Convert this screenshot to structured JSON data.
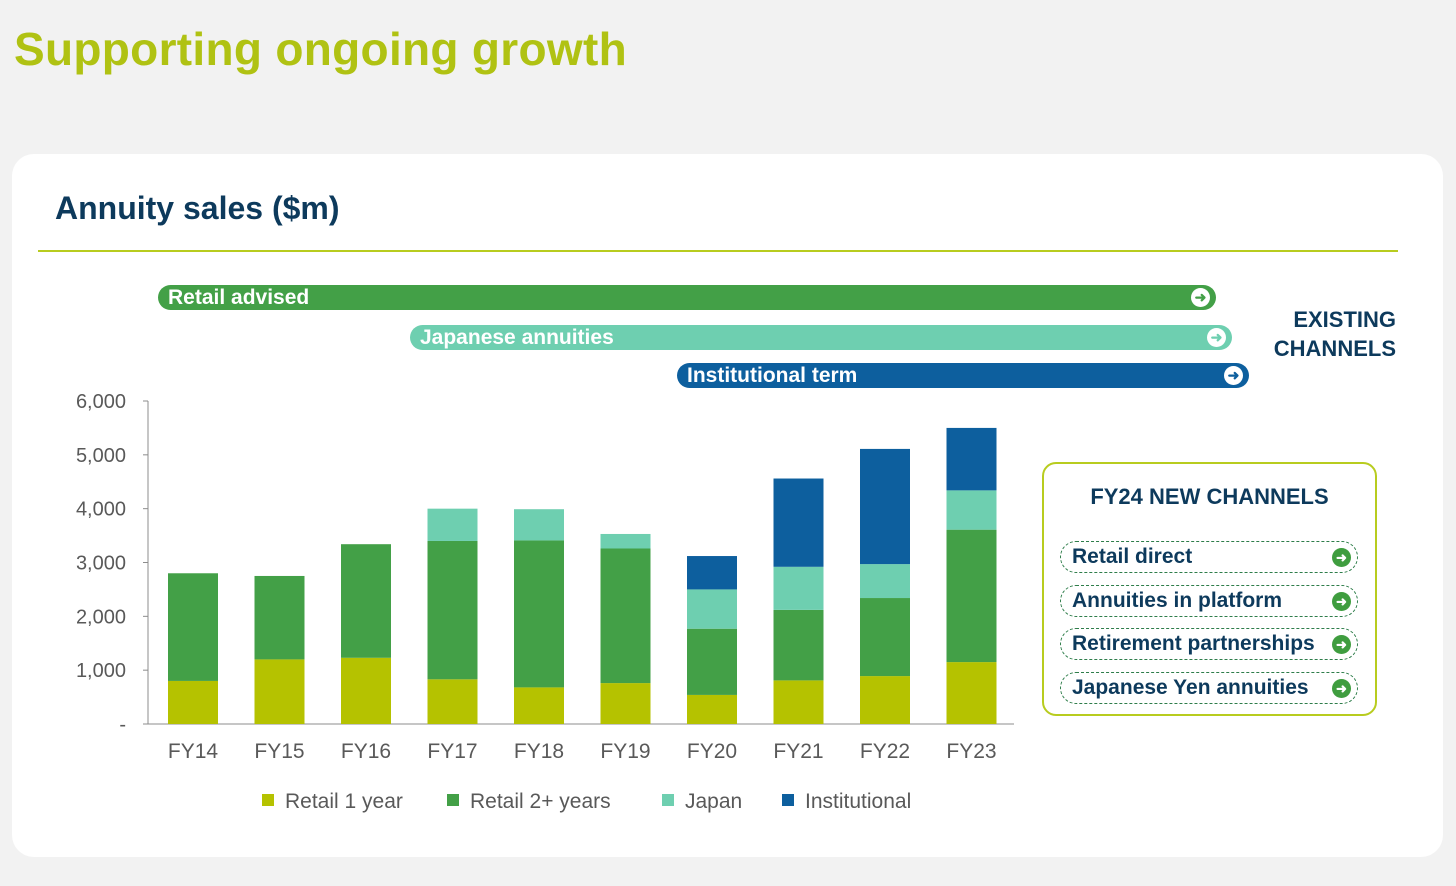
{
  "page": {
    "title": "Supporting ongoing growth"
  },
  "card": {
    "title": "Annuity sales ($m)"
  },
  "channels": {
    "existing_label_line1": "EXISTING",
    "existing_label_line2": "CHANNELS",
    "bars": [
      {
        "label": "Retail advised",
        "color": "#43a047"
      },
      {
        "label": "Japanese annuities",
        "color": "#6ecfb0"
      },
      {
        "label": "Institutional term",
        "color": "#0d5f9e"
      }
    ]
  },
  "new_channels": {
    "title": "FY24 NEW CHANNELS",
    "items": [
      "Retail direct",
      "Annuities in platform",
      "Retirement partnerships",
      "Japanese Yen annuities"
    ]
  },
  "chart_data": {
    "type": "bar",
    "stacked": true,
    "title": "Annuity sales ($m)",
    "xlabel": "",
    "ylabel": "",
    "ylim": [
      0,
      6000
    ],
    "yticks": [
      0,
      1000,
      2000,
      3000,
      4000,
      5000,
      6000
    ],
    "ytick_labels": [
      "-",
      "1,000",
      "2,000",
      "3,000",
      "4,000",
      "5,000",
      "6,000"
    ],
    "categories": [
      "FY14",
      "FY15",
      "FY16",
      "FY17",
      "FY18",
      "FY19",
      "FY20",
      "FY21",
      "FY22",
      "FY23"
    ],
    "series": [
      {
        "name": "Retail 1 year",
        "color": "#b5c200",
        "values": [
          800,
          1200,
          1230,
          830,
          680,
          760,
          540,
          810,
          890,
          1150
        ]
      },
      {
        "name": "Retail 2+ years",
        "color": "#43a047",
        "values": [
          2000,
          1550,
          2110,
          2570,
          2730,
          2500,
          1230,
          1310,
          1450,
          2460
        ]
      },
      {
        "name": "Japan",
        "color": "#6ecfb0",
        "values": [
          0,
          0,
          0,
          600,
          580,
          270,
          730,
          800,
          630,
          730
        ]
      },
      {
        "name": "Institutional",
        "color": "#0d5f9e",
        "values": [
          0,
          0,
          0,
          0,
          0,
          0,
          620,
          1640,
          2140,
          1160
        ]
      }
    ],
    "legend_position": "bottom",
    "grid": false
  }
}
